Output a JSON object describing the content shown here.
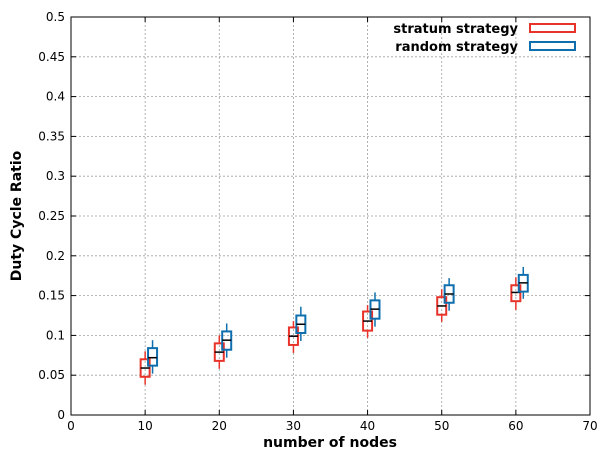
{
  "chart_data": {
    "type": "box",
    "xlabel": "number of nodes",
    "ylabel": "Duty Cycle Ratio",
    "xlim": [
      0,
      70
    ],
    "ylim": [
      0,
      0.5
    ],
    "x_ticks": [
      "0",
      "10",
      "20",
      "30",
      "40",
      "50",
      "60",
      "70"
    ],
    "y_ticks": [
      "0",
      "0.05",
      "0.1",
      "0.15",
      "0.2",
      "0.25",
      "0.3",
      "0.35",
      "0.4",
      "0.45",
      "0.5"
    ],
    "grid": true,
    "legend_position": "top-right",
    "series": [
      {
        "name": "stratum strategy",
        "color": "#e8332a",
        "boxes": [
          {
            "x": 10,
            "whisker_low": 0.038,
            "q1": 0.048,
            "median": 0.059,
            "q3": 0.07,
            "whisker_high": 0.08
          },
          {
            "x": 20,
            "whisker_low": 0.058,
            "q1": 0.068,
            "median": 0.079,
            "q3": 0.09,
            "whisker_high": 0.1
          },
          {
            "x": 30,
            "whisker_low": 0.078,
            "q1": 0.088,
            "median": 0.099,
            "q3": 0.11,
            "whisker_high": 0.118
          },
          {
            "x": 40,
            "whisker_low": 0.097,
            "q1": 0.106,
            "median": 0.118,
            "q3": 0.13,
            "whisker_high": 0.138
          },
          {
            "x": 50,
            "whisker_low": 0.117,
            "q1": 0.126,
            "median": 0.137,
            "q3": 0.148,
            "whisker_high": 0.158
          },
          {
            "x": 60,
            "whisker_low": 0.132,
            "q1": 0.143,
            "median": 0.154,
            "q3": 0.163,
            "whisker_high": 0.173
          }
        ]
      },
      {
        "name": "random strategy",
        "color": "#0f6fae",
        "boxes": [
          {
            "x": 11,
            "whisker_low": 0.052,
            "q1": 0.062,
            "median": 0.072,
            "q3": 0.084,
            "whisker_high": 0.094
          },
          {
            "x": 21,
            "whisker_low": 0.072,
            "q1": 0.082,
            "median": 0.094,
            "q3": 0.105,
            "whisker_high": 0.115
          },
          {
            "x": 31,
            "whisker_low": 0.093,
            "q1": 0.103,
            "median": 0.114,
            "q3": 0.125,
            "whisker_high": 0.136
          },
          {
            "x": 41,
            "whisker_low": 0.111,
            "q1": 0.121,
            "median": 0.133,
            "q3": 0.144,
            "whisker_high": 0.154
          },
          {
            "x": 51,
            "whisker_low": 0.131,
            "q1": 0.141,
            "median": 0.152,
            "q3": 0.163,
            "whisker_high": 0.172
          },
          {
            "x": 61,
            "whisker_low": 0.146,
            "q1": 0.155,
            "median": 0.166,
            "q3": 0.176,
            "whisker_high": 0.186
          }
        ]
      }
    ]
  }
}
